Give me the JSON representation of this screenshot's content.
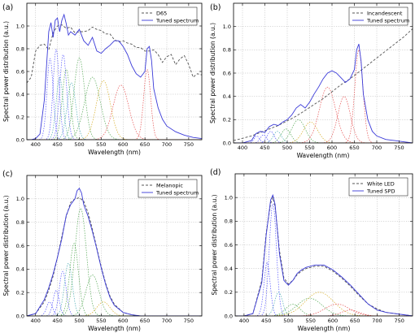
{
  "chart_data": [
    {
      "type": "line",
      "panel_label": "(a)",
      "xlabel": "Wavelength (nm)",
      "ylabel": "Spectral power distribution (a.u.)",
      "xlim": [
        380,
        780
      ],
      "ylim": [
        0,
        1.2
      ],
      "xticks": [
        400,
        450,
        500,
        550,
        600,
        650,
        700,
        750
      ],
      "yticks": [
        0.0,
        0.2,
        0.4,
        0.6,
        0.8,
        1.0
      ],
      "grid": true,
      "legend_position": "top-right",
      "series": [
        {
          "name": "D65",
          "style": "dashed",
          "color": "#555555",
          "x": [
            380,
            390,
            400,
            410,
            420,
            430,
            440,
            450,
            460,
            470,
            480,
            490,
            500,
            510,
            520,
            530,
            540,
            550,
            560,
            570,
            580,
            590,
            600,
            610,
            620,
            630,
            640,
            650,
            660,
            670,
            680,
            690,
            700,
            710,
            720,
            730,
            740,
            750,
            760,
            770,
            780
          ],
          "y": [
            0.5,
            0.55,
            0.78,
            0.83,
            0.84,
            0.79,
            0.94,
            1.0,
            1.01,
            0.98,
            0.99,
            0.94,
            0.95,
            0.95,
            0.96,
            0.99,
            0.97,
            0.96,
            0.93,
            0.93,
            0.88,
            0.86,
            0.87,
            0.85,
            0.84,
            0.81,
            0.81,
            0.78,
            0.78,
            0.79,
            0.75,
            0.68,
            0.73,
            0.75,
            0.66,
            0.71,
            0.74,
            0.66,
            0.55,
            0.58,
            0.57
          ]
        },
        {
          "name": "Tuned spectrum",
          "style": "solid",
          "color": "#3a3ad8",
          "x": [
            380,
            390,
            400,
            410,
            420,
            430,
            435,
            440,
            445,
            450,
            455,
            460,
            465,
            470,
            475,
            480,
            490,
            500,
            510,
            520,
            530,
            540,
            550,
            560,
            570,
            580,
            590,
            600,
            610,
            620,
            630,
            640,
            650,
            655,
            660,
            665,
            670,
            680,
            690,
            700,
            720,
            740,
            760,
            780
          ],
          "y": [
            0.0,
            0.0,
            0.01,
            0.05,
            0.35,
            0.95,
            1.03,
            0.9,
            1.05,
            1.07,
            0.95,
            1.05,
            1.1,
            1.02,
            0.92,
            0.95,
            0.92,
            0.97,
            0.87,
            0.83,
            0.9,
            0.78,
            0.76,
            0.8,
            0.83,
            0.87,
            0.87,
            0.82,
            0.75,
            0.65,
            0.58,
            0.55,
            0.6,
            0.8,
            0.82,
            0.7,
            0.45,
            0.28,
            0.18,
            0.12,
            0.07,
            0.04,
            0.02,
            0.01
          ]
        }
      ]
    },
    {
      "type": "line",
      "panel_label": "(b)",
      "xlabel": "Wavelength (nm)",
      "ylabel": "Spectral power distribution (a.u.)",
      "xlim": [
        380,
        780
      ],
      "ylim": [
        0,
        1.2
      ],
      "xticks": [
        400,
        450,
        500,
        550,
        600,
        650,
        700,
        750
      ],
      "yticks": [
        0.0,
        0.2,
        0.4,
        0.6,
        0.8,
        1.0
      ],
      "grid": true,
      "legend_position": "top-left",
      "series": [
        {
          "name": "Incandescent",
          "style": "dashed",
          "color": "#555555",
          "x": [
            380,
            400,
            420,
            440,
            460,
            480,
            500,
            520,
            540,
            560,
            580,
            600,
            620,
            640,
            660,
            680,
            700,
            720,
            740,
            760,
            780
          ],
          "y": [
            0.02,
            0.04,
            0.06,
            0.09,
            0.12,
            0.15,
            0.19,
            0.23,
            0.28,
            0.33,
            0.38,
            0.44,
            0.5,
            0.55,
            0.61,
            0.67,
            0.73,
            0.79,
            0.85,
            0.91,
            0.98
          ]
        },
        {
          "name": "Tuned spectrum",
          "style": "solid",
          "color": "#3a3ad8",
          "x": [
            380,
            400,
            420,
            430,
            440,
            450,
            460,
            470,
            480,
            490,
            500,
            510,
            520,
            530,
            540,
            550,
            560,
            570,
            580,
            590,
            600,
            610,
            620,
            630,
            640,
            650,
            655,
            660,
            665,
            670,
            680,
            690,
            700,
            720,
            740,
            760,
            780
          ],
          "y": [
            0.0,
            0.0,
            0.02,
            0.08,
            0.1,
            0.09,
            0.14,
            0.16,
            0.15,
            0.18,
            0.2,
            0.24,
            0.3,
            0.33,
            0.3,
            0.35,
            0.42,
            0.48,
            0.55,
            0.6,
            0.62,
            0.6,
            0.56,
            0.52,
            0.55,
            0.63,
            0.8,
            0.85,
            0.7,
            0.42,
            0.2,
            0.1,
            0.06,
            0.03,
            0.02,
            0.01,
            0.0
          ]
        }
      ]
    },
    {
      "type": "line",
      "panel_label": "(c)",
      "xlabel": "Wavelength (nm)",
      "ylabel": "Spectral power distribution (a.u.)",
      "xlim": [
        380,
        780
      ],
      "ylim": [
        0,
        1.2
      ],
      "xticks": [
        400,
        450,
        500,
        550,
        600,
        650,
        700,
        750
      ],
      "yticks": [
        0.0,
        0.2,
        0.4,
        0.6,
        0.8,
        1.0
      ],
      "grid": true,
      "legend_position": "top-right",
      "series": [
        {
          "name": "Melanopic",
          "style": "dashed",
          "color": "#555555",
          "x": [
            380,
            400,
            420,
            430,
            440,
            450,
            460,
            470,
            480,
            490,
            500,
            510,
            520,
            530,
            540,
            550,
            560,
            570,
            580,
            600,
            620,
            640,
            680,
            780
          ],
          "y": [
            0.0,
            0.02,
            0.12,
            0.22,
            0.34,
            0.5,
            0.68,
            0.85,
            0.97,
            1.0,
            1.01,
            0.98,
            0.88,
            0.74,
            0.58,
            0.42,
            0.28,
            0.17,
            0.1,
            0.03,
            0.01,
            0.0,
            0.0,
            0.0
          ]
        },
        {
          "name": "Tuned spectrum",
          "style": "solid",
          "color": "#3a3ad8",
          "x": [
            380,
            400,
            420,
            430,
            440,
            450,
            460,
            470,
            480,
            490,
            495,
            500,
            505,
            510,
            520,
            530,
            540,
            550,
            560,
            570,
            580,
            600,
            620,
            640,
            680,
            780
          ],
          "y": [
            0.0,
            0.02,
            0.14,
            0.24,
            0.36,
            0.5,
            0.66,
            0.86,
            0.95,
            1.0,
            1.07,
            1.09,
            1.05,
            0.95,
            0.85,
            0.72,
            0.57,
            0.41,
            0.27,
            0.16,
            0.09,
            0.03,
            0.01,
            0.0,
            0.0,
            0.0
          ]
        }
      ]
    },
    {
      "type": "line",
      "panel_label": "(d)",
      "xlabel": "Wavelength (nm)",
      "ylabel": "Spectral power distribution (a.u.)",
      "xlim": [
        380,
        780
      ],
      "ylim": [
        0,
        1.2
      ],
      "xticks": [
        400,
        450,
        500,
        550,
        600,
        650,
        700,
        750
      ],
      "yticks": [
        0.0,
        0.2,
        0.4,
        0.6,
        0.8,
        1.0
      ],
      "grid": true,
      "legend_position": "top-right",
      "series": [
        {
          "name": "White LED",
          "style": "dashed",
          "color": "#555555",
          "x": [
            380,
            400,
            420,
            440,
            450,
            460,
            465,
            470,
            480,
            490,
            500,
            510,
            520,
            530,
            540,
            560,
            580,
            600,
            620,
            640,
            660,
            680,
            700,
            720,
            740,
            760,
            780
          ],
          "y": [
            0.0,
            0.0,
            0.02,
            0.3,
            0.7,
            0.95,
            1.0,
            0.92,
            0.55,
            0.32,
            0.27,
            0.3,
            0.35,
            0.38,
            0.4,
            0.42,
            0.42,
            0.38,
            0.32,
            0.25,
            0.17,
            0.1,
            0.06,
            0.03,
            0.02,
            0.01,
            0.0
          ]
        },
        {
          "name": "Tuned SPD",
          "style": "solid",
          "color": "#3a3ad8",
          "x": [
            380,
            400,
            420,
            440,
            450,
            460,
            465,
            470,
            480,
            490,
            500,
            510,
            520,
            530,
            540,
            560,
            580,
            600,
            620,
            640,
            660,
            680,
            700,
            720,
            740,
            760,
            780
          ],
          "y": [
            0.0,
            0.0,
            0.02,
            0.28,
            0.68,
            0.98,
            1.02,
            0.94,
            0.52,
            0.3,
            0.26,
            0.3,
            0.36,
            0.39,
            0.41,
            0.43,
            0.43,
            0.39,
            0.33,
            0.26,
            0.18,
            0.1,
            0.05,
            0.03,
            0.02,
            0.01,
            0.0
          ]
        }
      ]
    }
  ]
}
